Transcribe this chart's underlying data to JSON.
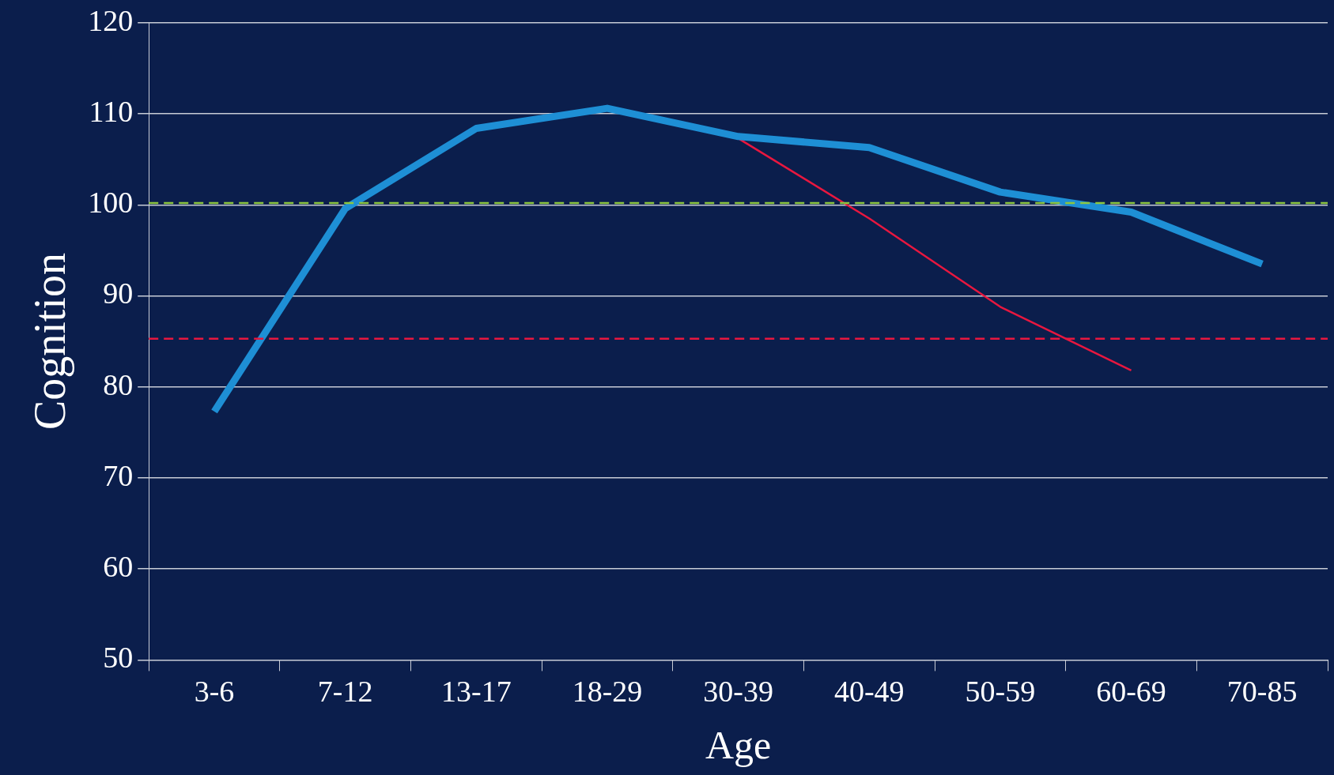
{
  "chart_data": {
    "type": "line",
    "xlabel": "Age",
    "ylabel": "Cognition",
    "categories": [
      "3-6",
      "7-12",
      "13-17",
      "18-29",
      "30-39",
      "40-49",
      "50-59",
      "60-69",
      "70-85"
    ],
    "series": [
      {
        "color": "#1e8fd5",
        "values": [
          77.3,
          99.6,
          108.4,
          110.6,
          107.5,
          106.3,
          101.4,
          99.2,
          93.5
        ]
      },
      {
        "color": "#e8173f",
        "values": [
          null,
          null,
          null,
          null,
          107.3,
          98.5,
          88.8,
          81.8,
          null
        ]
      }
    ],
    "ylim": [
      50,
      120
    ],
    "yticks": [
      50,
      60,
      70,
      80,
      90,
      100,
      110,
      120
    ],
    "grid": "y",
    "legend": false,
    "marker": "none",
    "ref_lines": [
      {
        "axis": "y",
        "value": 100.2,
        "color": "#8dc63f",
        "line_style": "dashed"
      },
      {
        "axis": "y",
        "value": 85.3,
        "color": "#e8173f",
        "line_style": "dashed"
      }
    ]
  }
}
